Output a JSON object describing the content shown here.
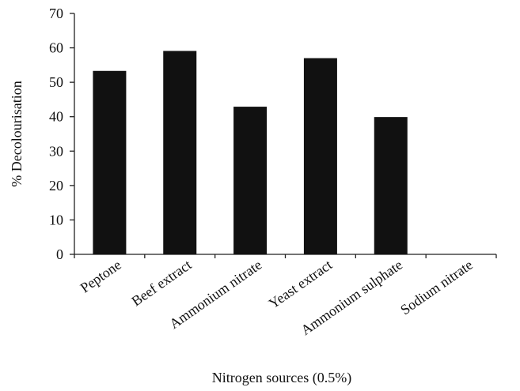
{
  "chart_data": {
    "type": "bar",
    "categories": [
      "Peptone",
      "Beef extract",
      "Ammonium nitrate",
      "Yeast extract",
      "Ammonium sulphate",
      "Sodium nitrate"
    ],
    "values": [
      53.3,
      59.1,
      42.9,
      57.0,
      39.9,
      0
    ],
    "xlabel": "Nitrogen sources (0.5%)",
    "ylabel": "% Decolourisation",
    "ylim": [
      0,
      70
    ],
    "yticks": [
      0,
      10,
      20,
      30,
      40,
      50,
      60,
      70
    ],
    "grid": false,
    "legend": "none",
    "bar_color": "#111111"
  }
}
